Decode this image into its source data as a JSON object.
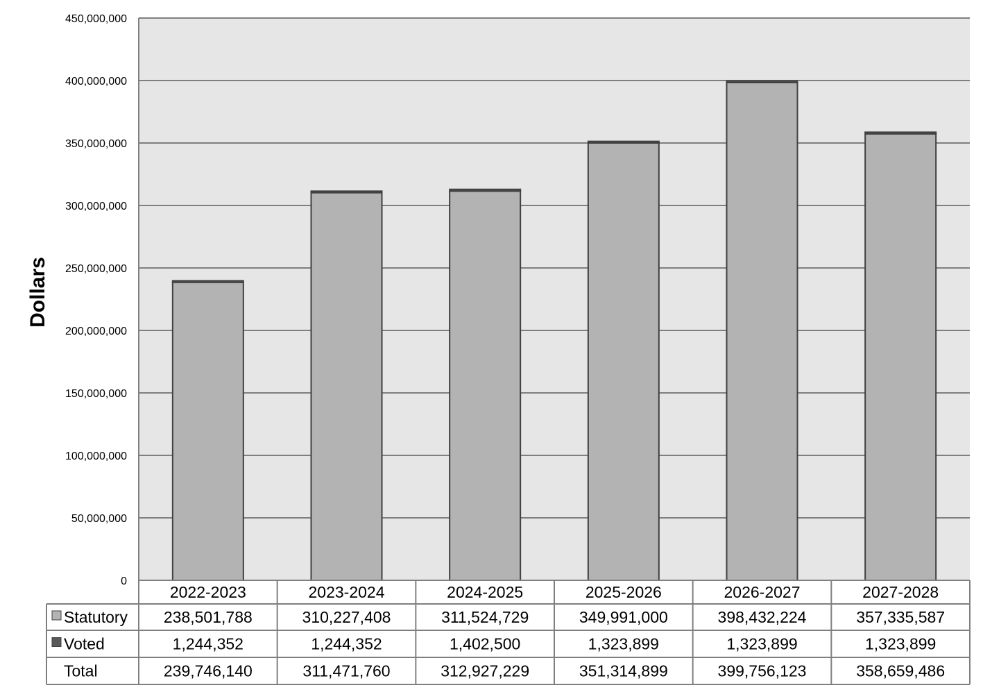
{
  "chart_data": {
    "type": "bar",
    "ylabel": "Dollars",
    "xlabel": "",
    "ylim": [
      0,
      450000000
    ],
    "y_ticks": [
      0,
      50000000,
      100000000,
      150000000,
      200000000,
      250000000,
      300000000,
      350000000,
      400000000,
      450000000
    ],
    "y_tick_labels": [
      "0",
      "50,000,000",
      "100,000,000",
      "150,000,000",
      "200,000,000",
      "250,000,000",
      "300,000,000",
      "350,000,000",
      "400,000,000",
      "450,000,000"
    ],
    "grid": true,
    "stacked": true,
    "categories": [
      "2022-2023",
      "2023-2024",
      "2024-2025",
      "2025-2026",
      "2026-2027",
      "2027-2028"
    ],
    "series": [
      {
        "name": "Statutory",
        "values": [
          238501788,
          310227408,
          311524729,
          349991000,
          398432224,
          357335587
        ],
        "color": "#b3b3b3"
      },
      {
        "name": "Voted",
        "values": [
          1244352,
          1244352,
          1402500,
          1323899,
          1323899,
          1323899
        ],
        "color": "#595959"
      }
    ],
    "totals": [
      239746140,
      311471760,
      312927229,
      351314899,
      399756123,
      358659486
    ],
    "table": {
      "rows": [
        {
          "label": "Statutory",
          "values": [
            "238,501,788",
            "310,227,408",
            "311,524,729",
            "349,991,000",
            "398,432,224",
            "357,335,587"
          ]
        },
        {
          "label": "Voted",
          "values": [
            "1,244,352",
            "1,244,352",
            "1,402,500",
            "1,323,899",
            "1,323,899",
            "1,323,899"
          ]
        },
        {
          "label": "Total",
          "values": [
            "239,746,140",
            "311,471,760",
            "312,927,229",
            "351,314,899",
            "399,756,123",
            "358,659,486"
          ]
        }
      ]
    },
    "colors": {
      "plot_background": "#e6e6e6",
      "gridline": "#7f7f7f",
      "bar_edge": "#404040"
    }
  }
}
